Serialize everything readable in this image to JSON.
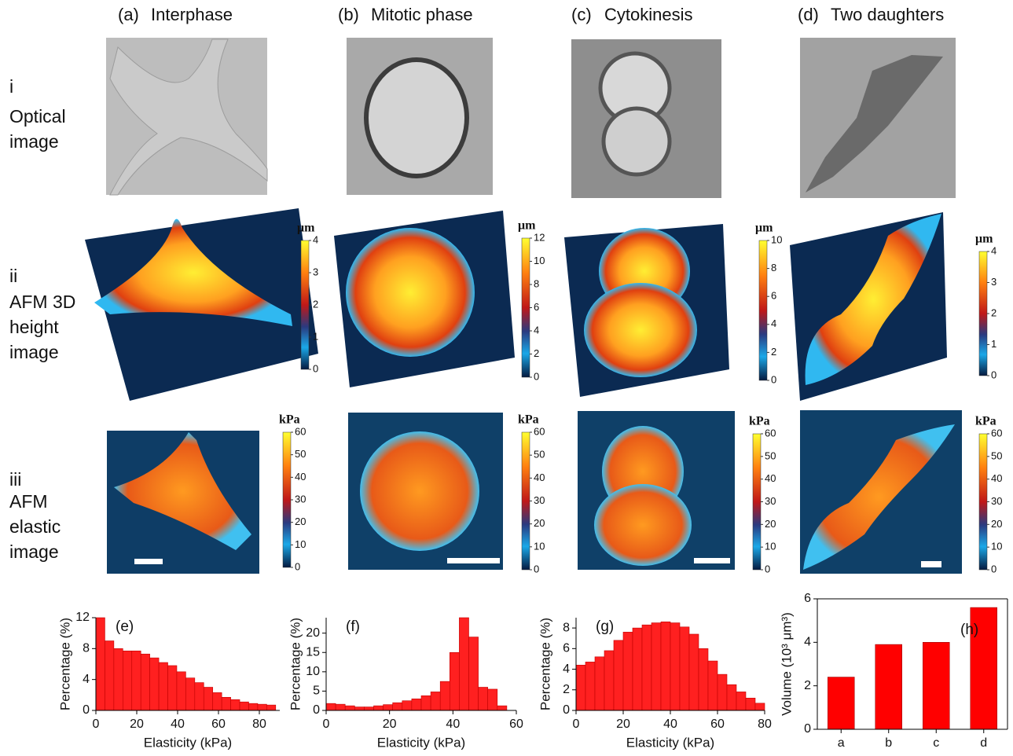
{
  "columns": [
    {
      "label": "(a)",
      "title": "Interphase"
    },
    {
      "label": "(b)",
      "title": "Mitotic phase"
    },
    {
      "label": "(c)",
      "title": "Cytokinesis"
    },
    {
      "label": "(d)",
      "title": "Two daughters"
    }
  ],
  "rows": [
    {
      "numeral": "i",
      "lines": [
        "Optical",
        "image"
      ]
    },
    {
      "numeral": "ii",
      "lines": [
        "AFM 3D",
        "height",
        "image"
      ]
    },
    {
      "numeral": "iii",
      "lines": [
        "AFM",
        "elastic",
        "image"
      ]
    }
  ],
  "colorbars": [
    {
      "unit": "μm",
      "lim": [
        0,
        4
      ],
      "ticks": [
        0,
        1,
        2,
        3,
        4
      ]
    },
    {
      "unit": "μm",
      "lim": [
        0,
        12
      ],
      "ticks": [
        0,
        2,
        4,
        6,
        8,
        10,
        12
      ]
    },
    {
      "unit": "μm",
      "lim": [
        0,
        10
      ],
      "ticks": [
        0,
        2,
        4,
        6,
        8,
        10
      ]
    },
    {
      "unit": "μm",
      "lim": [
        0,
        4
      ],
      "ticks": [
        0,
        1,
        2,
        3,
        4
      ]
    },
    {
      "unit": "kPa",
      "lim": [
        0,
        60
      ],
      "ticks": [
        0,
        10,
        20,
        30,
        40,
        50,
        60
      ]
    },
    {
      "unit": "kPa",
      "lim": [
        0,
        60
      ],
      "ticks": [
        0,
        10,
        20,
        30,
        40,
        50,
        60
      ]
    },
    {
      "unit": "kPa",
      "lim": [
        0,
        60
      ],
      "ticks": [
        0,
        10,
        20,
        30,
        40,
        50,
        60
      ]
    },
    {
      "unit": "kPa",
      "lim": [
        0,
        60
      ],
      "ticks": [
        0,
        10,
        20,
        30,
        40,
        50,
        60
      ]
    }
  ],
  "chart_data": [
    {
      "type": "histogram",
      "panel": "(e)",
      "xlabel": "Elasticity (kPa)",
      "ylabel": "Percentage (%)",
      "color": "#ff2020",
      "bins": [
        0,
        4.4,
        8.8,
        13.2,
        17.6,
        22,
        26.4,
        30.8,
        35.2,
        39.6,
        44,
        48.4,
        52.8,
        57.2,
        61.6,
        66,
        70.4,
        74.8,
        79.2,
        83.6,
        88
      ],
      "values": [
        12,
        9,
        8,
        7.7,
        7.7,
        7.3,
        6.8,
        6.2,
        5.8,
        5,
        4.2,
        3.6,
        3,
        2.3,
        1.7,
        1.4,
        1.1,
        0.9,
        0.8,
        0.7
      ],
      "xlim": [
        0,
        90
      ],
      "xticks": [
        0,
        20,
        40,
        60,
        80
      ],
      "ylim": [
        0,
        12
      ],
      "yticks": [
        0,
        4,
        8,
        12
      ]
    },
    {
      "type": "histogram",
      "panel": "(f)",
      "xlabel": "Elasticity (kPa)",
      "ylabel": "Percentage (%)",
      "color": "#ff2020",
      "bins": [
        0,
        3,
        6,
        9,
        12,
        15,
        18,
        21,
        24,
        27,
        30,
        33,
        36,
        39,
        42,
        45,
        48,
        51,
        54,
        57
      ],
      "values": [
        1.8,
        1.6,
        1.2,
        0.9,
        0.9,
        1.2,
        1.5,
        2,
        2.5,
        3,
        3.8,
        4.8,
        7.5,
        15,
        24,
        19,
        6,
        5.5,
        1.2
      ],
      "xlim": [
        0,
        60
      ],
      "xticks": [
        0,
        20,
        40,
        60
      ],
      "ylim": [
        0,
        24
      ],
      "yticks": [
        0,
        5,
        10,
        15,
        20
      ]
    },
    {
      "type": "histogram",
      "panel": "(g)",
      "xlabel": "Elasticity (kPa)",
      "ylabel": "Percentage (%)",
      "color": "#ff2020",
      "bins": [
        0,
        4,
        8,
        12,
        16,
        20,
        24,
        28,
        32,
        36,
        40,
        44,
        48,
        52,
        56,
        60,
        64,
        68,
        72,
        76,
        80
      ],
      "values": [
        4.4,
        4.7,
        5.2,
        5.8,
        6.8,
        7.6,
        8,
        8.3,
        8.5,
        8.6,
        8.5,
        8.1,
        7.4,
        6,
        4.8,
        3.5,
        2.5,
        1.8,
        1.2,
        0.7
      ],
      "xlim": [
        0,
        80
      ],
      "xticks": [
        0,
        20,
        40,
        60,
        80
      ],
      "ylim": [
        0,
        9
      ],
      "yticks": [
        0,
        2,
        4,
        6,
        8
      ]
    },
    {
      "type": "bar",
      "panel": "(h)",
      "ylabel": "Volume (10³ μm³)",
      "color": "#ff0000",
      "categories": [
        "a",
        "b",
        "c",
        "d"
      ],
      "values": [
        2.4,
        3.9,
        4.0,
        5.6
      ],
      "ylim": [
        0,
        6
      ],
      "yticks": [
        0,
        2,
        4,
        6
      ]
    }
  ]
}
